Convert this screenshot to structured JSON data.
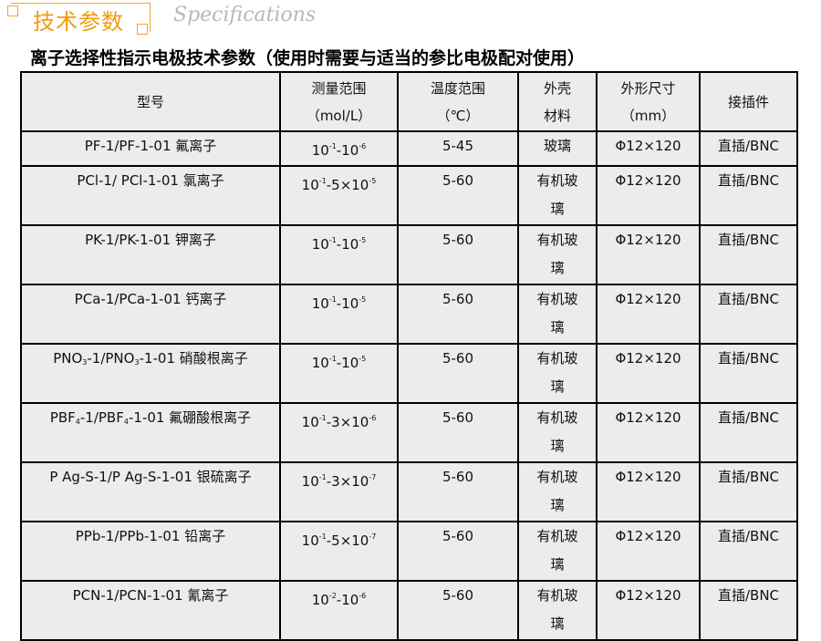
{
  "header": {
    "badge": "技术参数",
    "subtitle": "Specifications",
    "accent": "#f39a10"
  },
  "title": "离子选择性指示电极技术参数（使用时需要与适当的参比电极配对使用）",
  "table": {
    "columns": [
      "型号",
      [
        "测量范围",
        "（mol/L）"
      ],
      [
        "温度范围",
        "（℃）"
      ],
      [
        "外壳",
        "材料"
      ],
      [
        "外形尺寸",
        "（mm）"
      ],
      "接插件"
    ],
    "rows": [
      {
        "model": [
          [
            "PF-1/PF-1-01 氟离子"
          ]
        ],
        "range": [
          [
            "10"
          ],
          [
            "-1",
            "sup"
          ],
          [
            "-10"
          ],
          [
            "-6",
            "sup"
          ]
        ],
        "temp": "5-45",
        "material": "玻璃",
        "size": "Φ12×120",
        "connector": "直插/BNC"
      },
      {
        "model": [
          [
            "PCl-1/ PCl-1-01 氯离子"
          ]
        ],
        "range": [
          [
            "10"
          ],
          [
            "-1",
            "sup"
          ],
          [
            "-5×10"
          ],
          [
            "-5",
            "sup"
          ]
        ],
        "temp": "5-60",
        "material": "有机玻璃",
        "size": "Φ12×120",
        "connector": "直插/BNC"
      },
      {
        "model": [
          [
            "PK-1/PK-1-01 钾离子"
          ]
        ],
        "range": [
          [
            "10"
          ],
          [
            "-1",
            "sup"
          ],
          [
            "-10"
          ],
          [
            "-5",
            "sup"
          ]
        ],
        "temp": "5-60",
        "material": "有机玻璃",
        "size": "Φ12×120",
        "connector": "直插/BNC"
      },
      {
        "model": [
          [
            "PCa-1/PCa-1-01 钙离子"
          ]
        ],
        "range": [
          [
            "10"
          ],
          [
            "-1",
            "sup"
          ],
          [
            "-10"
          ],
          [
            "-5",
            "sup"
          ]
        ],
        "temp": "5-60",
        "material": "有机玻璃",
        "size": "Φ12×120",
        "connector": "直插/BNC"
      },
      {
        "model": [
          [
            "PNO"
          ],
          [
            "3",
            "sub"
          ],
          [
            "-1/PNO"
          ],
          [
            "3",
            "sub"
          ],
          [
            "-1-01 硝酸根离子"
          ]
        ],
        "range": [
          [
            "10"
          ],
          [
            "-1",
            "sup"
          ],
          [
            "-10"
          ],
          [
            "-5",
            "sup"
          ]
        ],
        "temp": "5-60",
        "material": "有机玻璃",
        "size": "Φ12×120",
        "connector": "直插/BNC"
      },
      {
        "model": [
          [
            "PBF"
          ],
          [
            "4",
            "sub"
          ],
          [
            "-1/PBF"
          ],
          [
            "4",
            "sub"
          ],
          [
            "-1-01 氟硼酸根离子"
          ]
        ],
        "range": [
          [
            "10"
          ],
          [
            "-1",
            "sup"
          ],
          [
            "-3×10"
          ],
          [
            "-6",
            "sup"
          ]
        ],
        "temp": "5-60",
        "material": "有机玻璃",
        "size": "Φ12×120",
        "connector": "直插/BNC"
      },
      {
        "model": [
          [
            "P Ag-S-1/P Ag-S-1-01 银硫离子"
          ]
        ],
        "range": [
          [
            "10"
          ],
          [
            "-1",
            "sup"
          ],
          [
            "-3×10"
          ],
          [
            "-7",
            "sup"
          ]
        ],
        "temp": "5-60",
        "material": "有机玻璃",
        "size": "Φ12×120",
        "connector": "直插/BNC"
      },
      {
        "model": [
          [
            "PPb-1/PPb-1-01 铅离子"
          ]
        ],
        "range": [
          [
            "10"
          ],
          [
            "-1",
            "sup"
          ],
          [
            "-5×10"
          ],
          [
            "-7",
            "sup"
          ]
        ],
        "temp": "5-60",
        "material": "有机玻璃",
        "size": "Φ12×120",
        "connector": "直插/BNC"
      },
      {
        "model": [
          [
            "PCN-1/PCN-1-01 氰离子"
          ]
        ],
        "range": [
          [
            "10"
          ],
          [
            "-2",
            "sup"
          ],
          [
            "-10"
          ],
          [
            "-6",
            "sup"
          ]
        ],
        "temp": "5-60",
        "material": "有机玻璃",
        "size": "Φ12×120",
        "connector": "直插/BNC"
      }
    ]
  }
}
